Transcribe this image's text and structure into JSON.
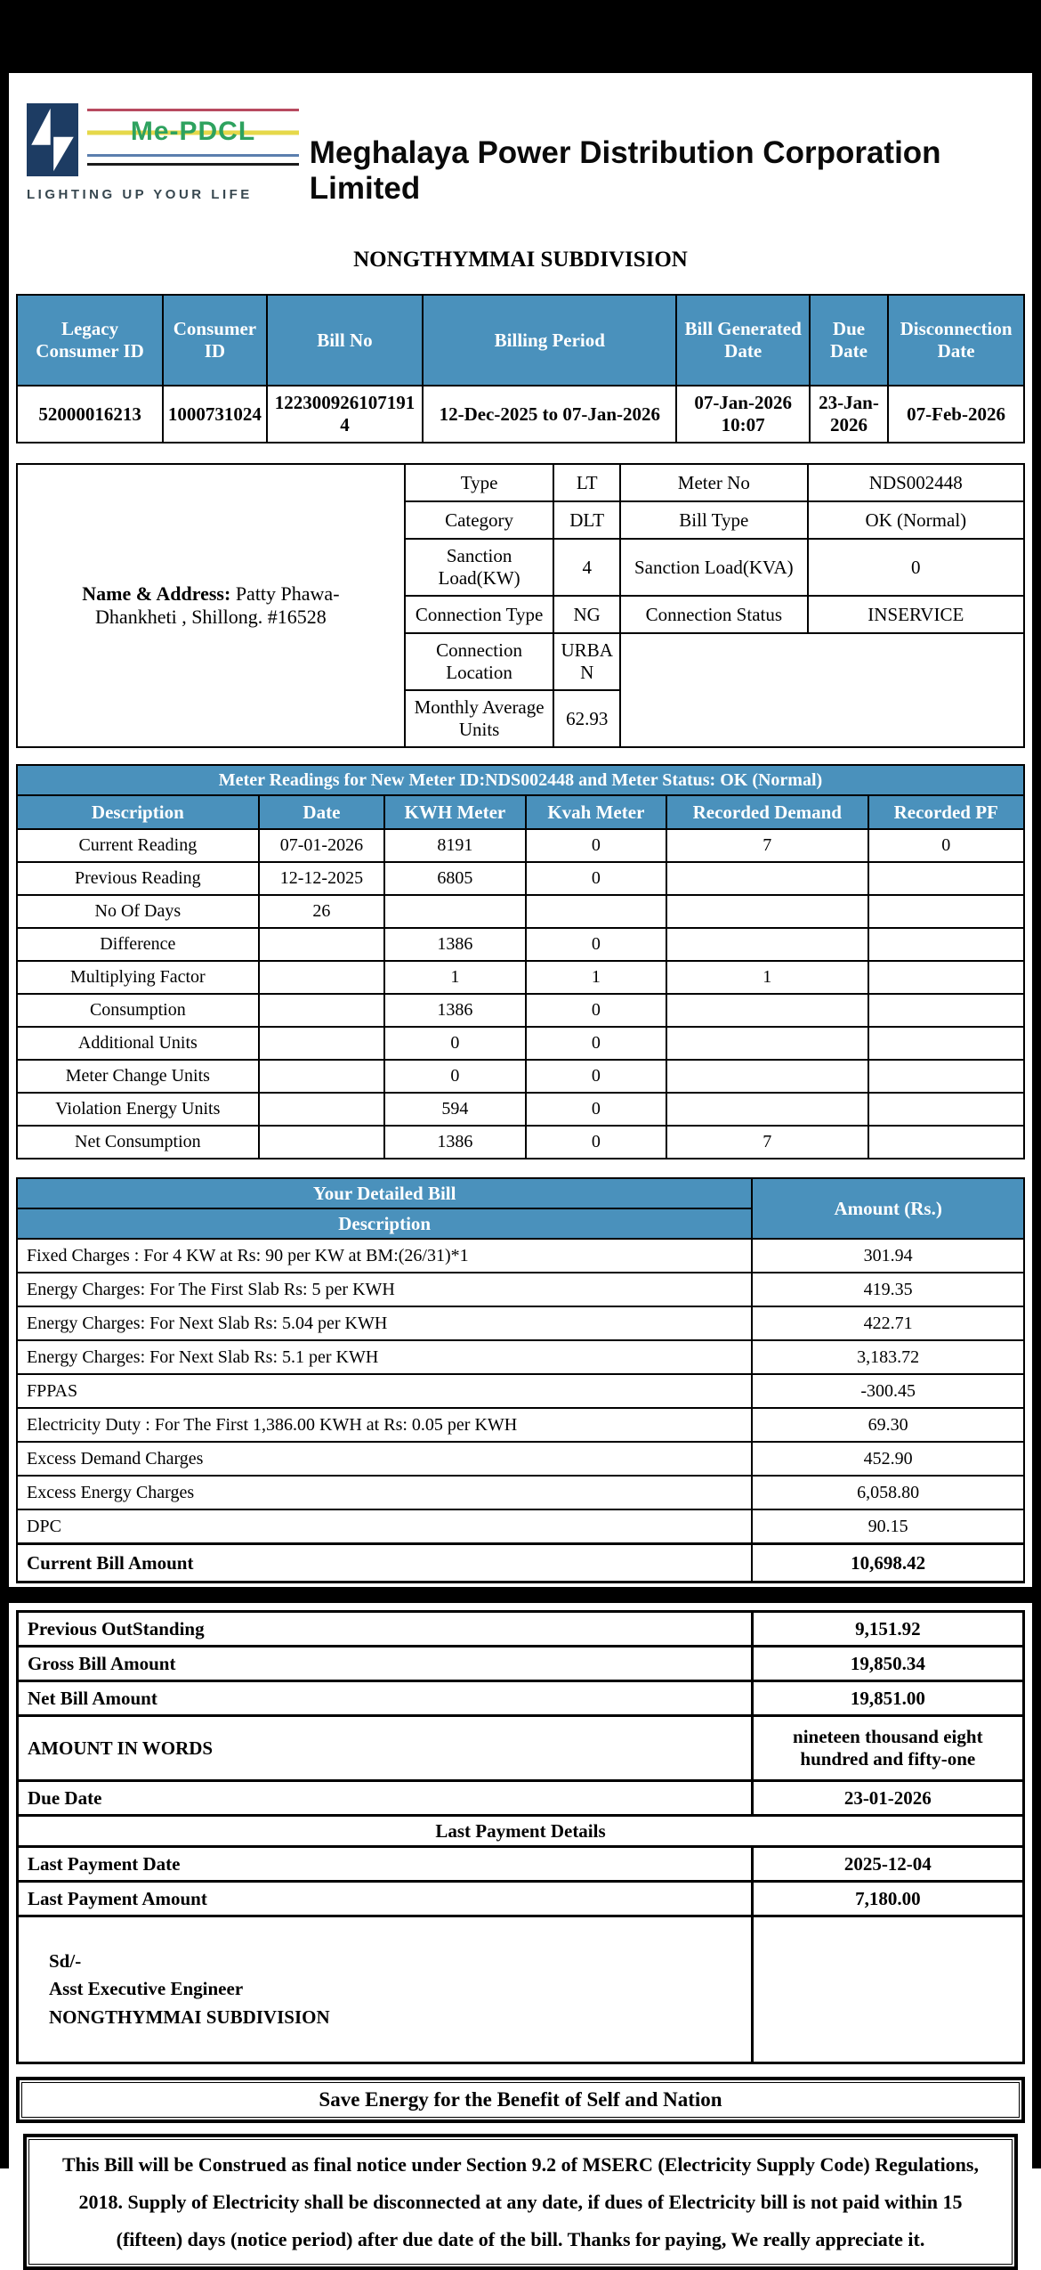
{
  "header": {
    "company": "Meghalaya Power Distribution Corporation Limited",
    "logo_brand": "Me-PDCL",
    "logo_tagline": "LIGHTING UP YOUR LIFE"
  },
  "subdivision": "NONGTHYMMAI SUBDIVISION",
  "summary": {
    "headers": [
      "Legacy Consumer ID",
      "Consumer ID",
      "Bill No",
      "Billing Period",
      "Bill Generated Date",
      "Due Date",
      "Disconnection Date"
    ],
    "values": [
      "52000016213",
      "1000731024",
      "1223009261071914",
      "12-Dec-2025 to 07-Jan-2026",
      "07-Jan-2026 10:07",
      "23-Jan-2026",
      "07-Feb-2026"
    ]
  },
  "consumer": {
    "name_label": "Name & Address:",
    "name_value": " Patty Phawa-Dhankheti , Shillong. #16528",
    "left": [
      {
        "label": "Type",
        "value": "LT"
      },
      {
        "label": "Category",
        "value": "DLT"
      },
      {
        "label": "Sanction Load(KW)",
        "value": "4"
      },
      {
        "label": "Connection Type",
        "value": "NG"
      },
      {
        "label": "Connection Location",
        "value": "URBAN"
      },
      {
        "label": "Monthly Average Units",
        "value": "62.93"
      }
    ],
    "right": [
      {
        "label": "Meter No",
        "value": "NDS002448"
      },
      {
        "label": "Bill Type",
        "value": "OK (Normal)"
      },
      {
        "label": "Sanction Load(KVA)",
        "value": "0"
      },
      {
        "label": "Connection Status",
        "value": "INSERVICE"
      }
    ]
  },
  "meter": {
    "title": "Meter Readings for New Meter ID:NDS002448 and Meter Status: OK (Normal)",
    "headers": [
      "Description",
      "Date",
      "KWH Meter",
      "Kvah Meter",
      "Recorded Demand",
      "Recorded PF"
    ],
    "rows": [
      [
        "Current Reading",
        "07-01-2026",
        "8191",
        "0",
        "7",
        "0"
      ],
      [
        "Previous Reading",
        "12-12-2025",
        "6805",
        "0",
        "",
        ""
      ],
      [
        "No Of Days",
        "26",
        "",
        "",
        "",
        ""
      ],
      [
        "Difference",
        "",
        "1386",
        "0",
        "",
        ""
      ],
      [
        "Multiplying Factor",
        "",
        "1",
        "1",
        "1",
        ""
      ],
      [
        "Consumption",
        "",
        "1386",
        "0",
        "",
        ""
      ],
      [
        "Additional Units",
        "",
        "0",
        "0",
        "",
        ""
      ],
      [
        "Meter Change Units",
        "",
        "0",
        "0",
        "",
        ""
      ],
      [
        "Violation Energy Units",
        "",
        "594",
        "0",
        "",
        ""
      ],
      [
        "Net Consumption",
        "",
        "1386",
        "0",
        "7",
        ""
      ]
    ]
  },
  "bill": {
    "title": "Your Detailed Bill",
    "desc_header": "Description",
    "amount_header": "Amount (Rs.)",
    "rows": [
      [
        "Fixed Charges : For 4 KW at Rs: 90 per KW at BM:(26/31)*1",
        "301.94"
      ],
      [
        "Energy Charges: For The First Slab Rs: 5 per KWH",
        "419.35"
      ],
      [
        "Energy Charges: For Next Slab Rs: 5.04 per KWH",
        "422.71"
      ],
      [
        "Energy Charges: For Next Slab Rs: 5.1 per KWH",
        "3,183.72"
      ],
      [
        "FPPAS",
        "-300.45"
      ],
      [
        "Electricity Duty : For The First 1,386.00 KWH at Rs: 0.05 per KWH",
        "69.30"
      ],
      [
        "Excess Demand Charges",
        "452.90"
      ],
      [
        "Excess Energy Charges",
        "6,058.80"
      ],
      [
        "DPC",
        "90.15"
      ]
    ],
    "total_label": "Current Bill Amount",
    "total_value": "10,698.42"
  },
  "totals": {
    "previous_outstanding_label": "Previous OutStanding",
    "previous_outstanding_value": "9,151.92",
    "gross_label": "Gross Bill Amount",
    "gross_value": "19,850.34",
    "net_label": "Net Bill Amount",
    "net_value": "19,851.00",
    "words_label": "AMOUNT IN WORDS",
    "words_value": "nineteen thousand eight hundred and fifty-one",
    "due_label": "Due Date",
    "due_value": "23-01-2026",
    "last_payment_header": "Last Payment Details",
    "last_date_label": "Last Payment Date",
    "last_date_value": "2025-12-04",
    "last_amount_label": "Last Payment Amount",
    "last_amount_value": "7,180.00",
    "signature": {
      "sd": "Sd/-",
      "designation": "Asst Executive Engineer",
      "office": "NONGTHYMMAI SUBDIVISION"
    }
  },
  "banner": "Save Energy for the Benefit of Self and Nation",
  "notice": "This Bill will be Construed as final notice under Section 9.2 of MSERC (Electricity Supply Code) Regulations, 2018. Supply of Electricity shall be disconnected at any date, if dues of Electricity bill is not paid within 15 (fifteen) days (notice period) after due date of the bill. Thanks for paying, We really appreciate it.",
  "colors": {
    "table_header_blue": "#4a91bc",
    "logo_navy": "#1d3c63",
    "logo_green": "#2ea25f"
  }
}
